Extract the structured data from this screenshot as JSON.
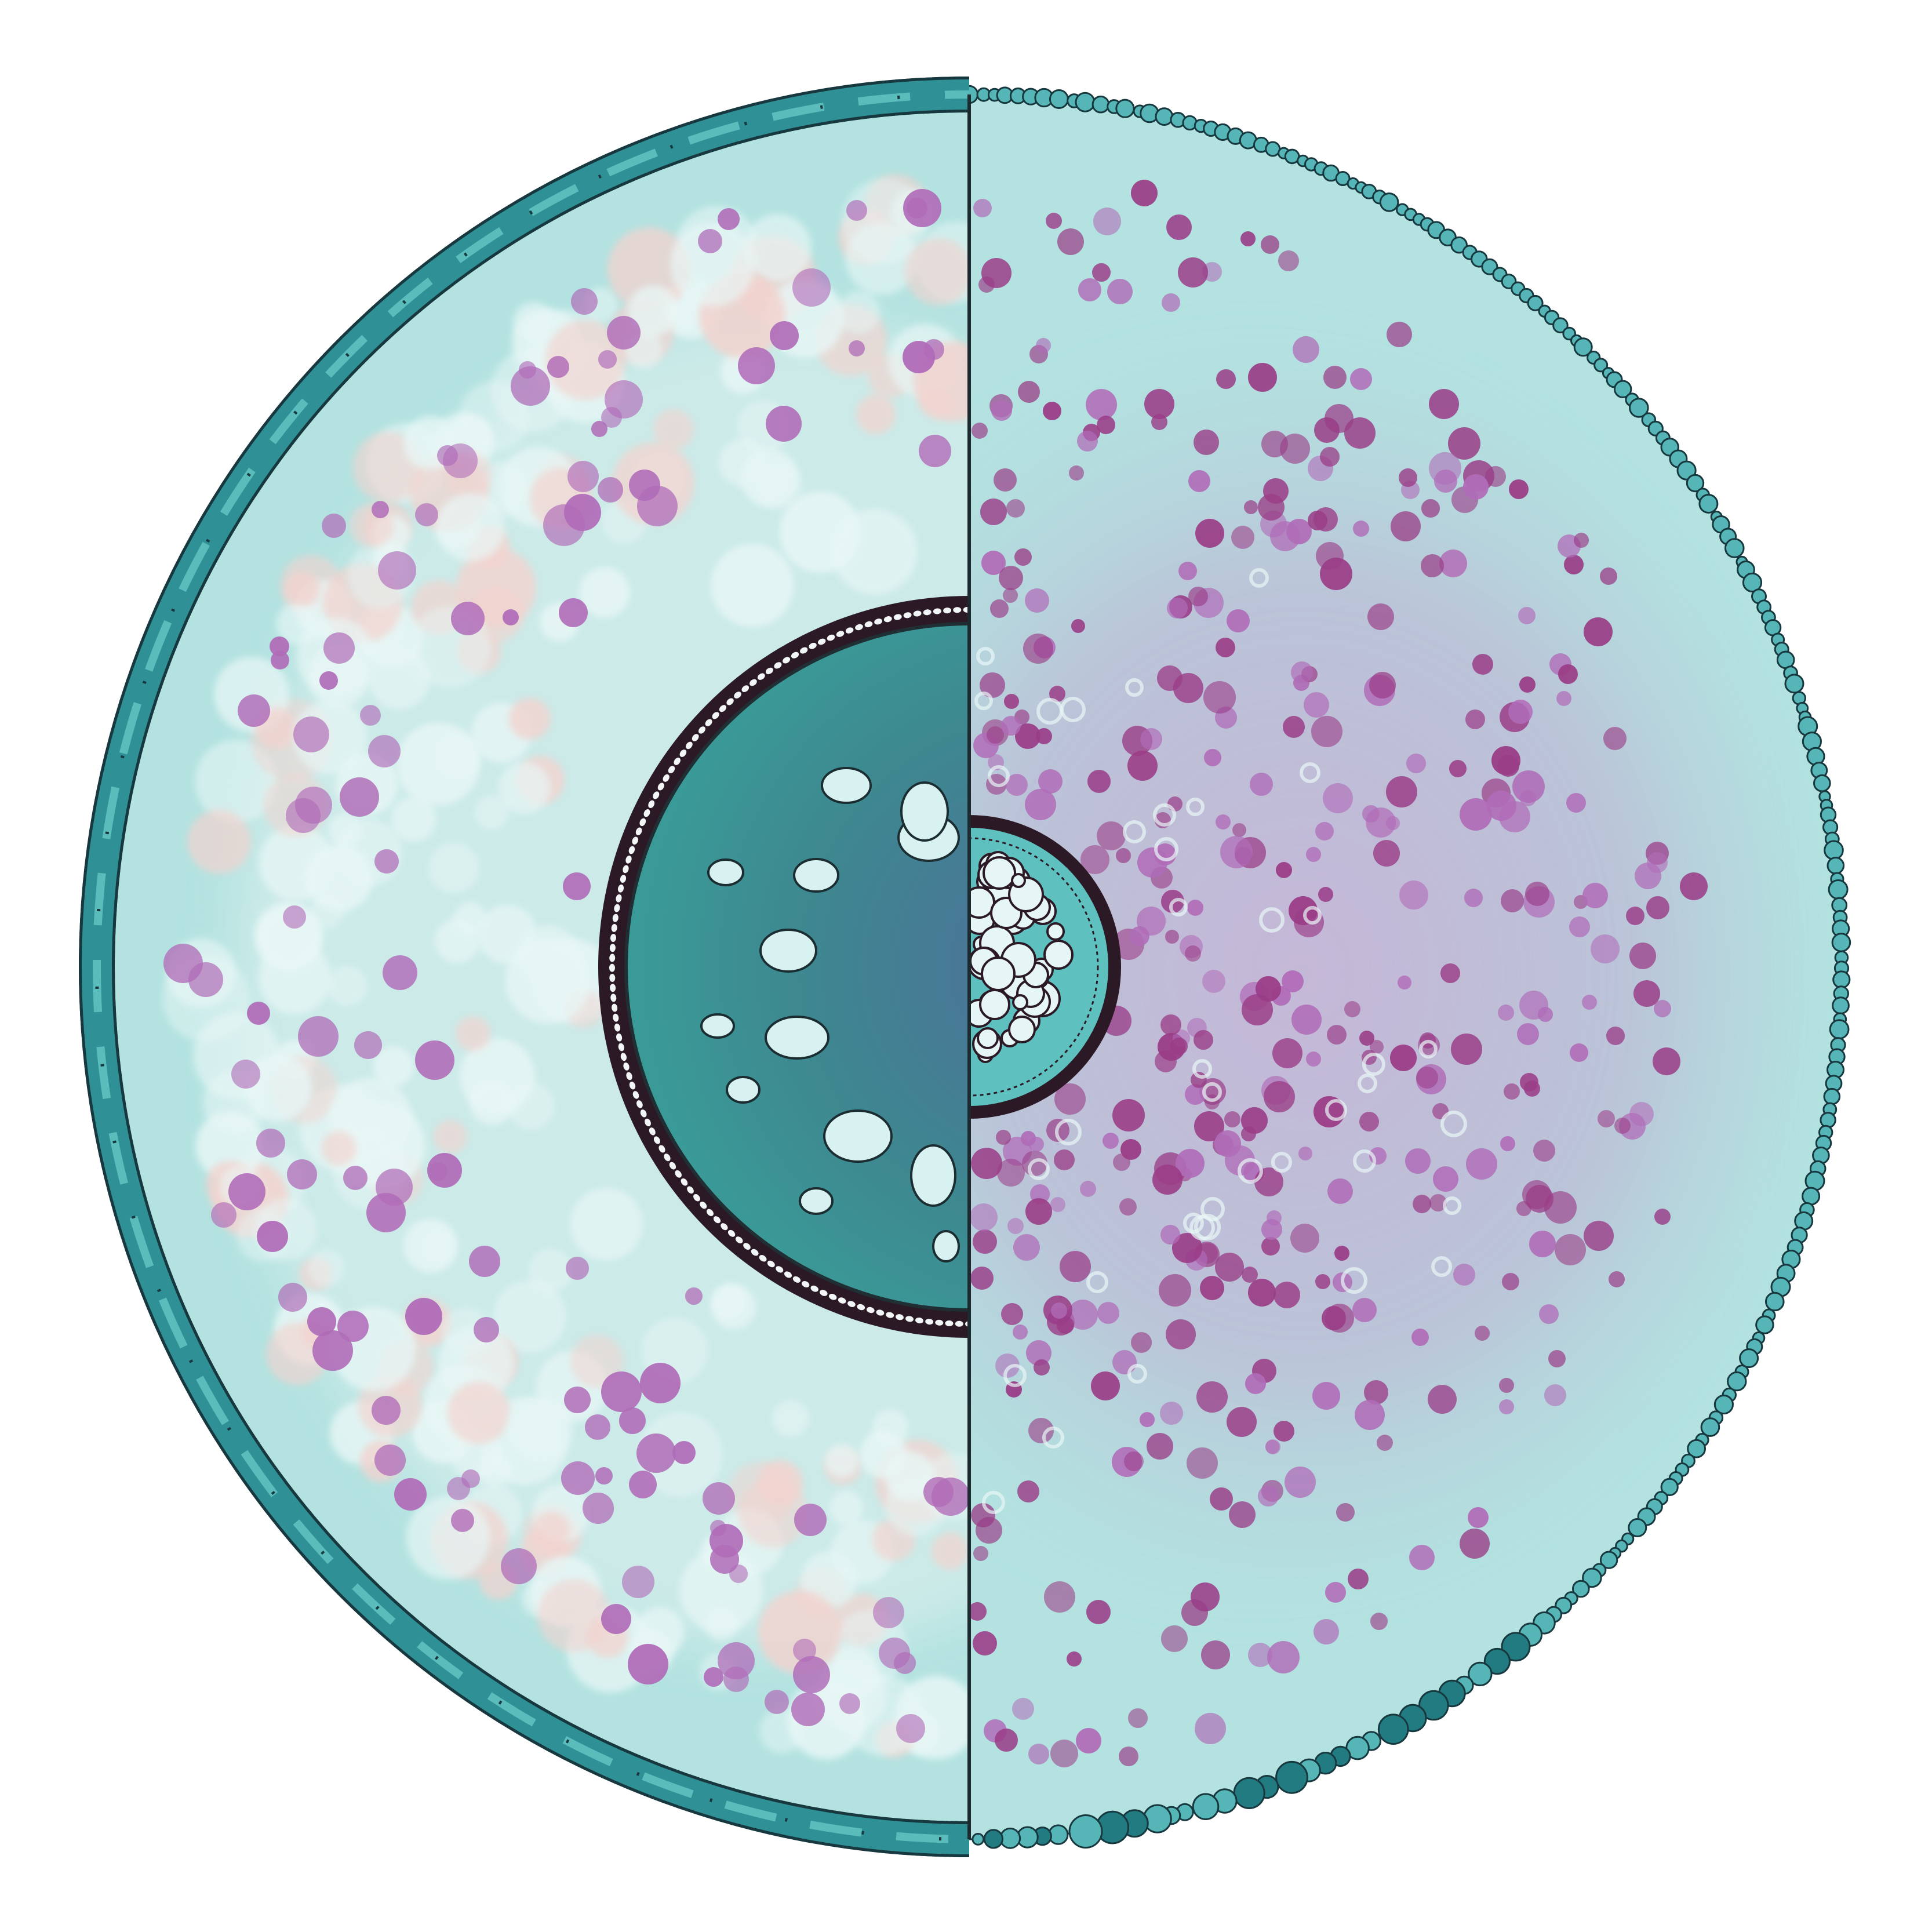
{
  "illustration": {
    "subject": "",
    "colors": {
      "background": "#ffffff",
      "cytoplasm": "#b3e2e0",
      "membrane_fill": "#2f8f93",
      "membrane_stroke": "#17383e",
      "nucleus_fill": "#3a8e91",
      "nucleus_core": "#4a789a",
      "nuclear_envelope": "#2b1a25",
      "granule_purple_light": "#b06cb8",
      "granule_purple_dark": "#9a3d87",
      "vesicle_white": "#e8f7f6",
      "vesicle_pink": "#f3d3cf",
      "divider": "#1d2b30"
    },
    "icons": [
      "cell-membrane-left-icon",
      "cell-membrane-right-icon",
      "nucleus-icon",
      "nucleolus-icon"
    ]
  }
}
